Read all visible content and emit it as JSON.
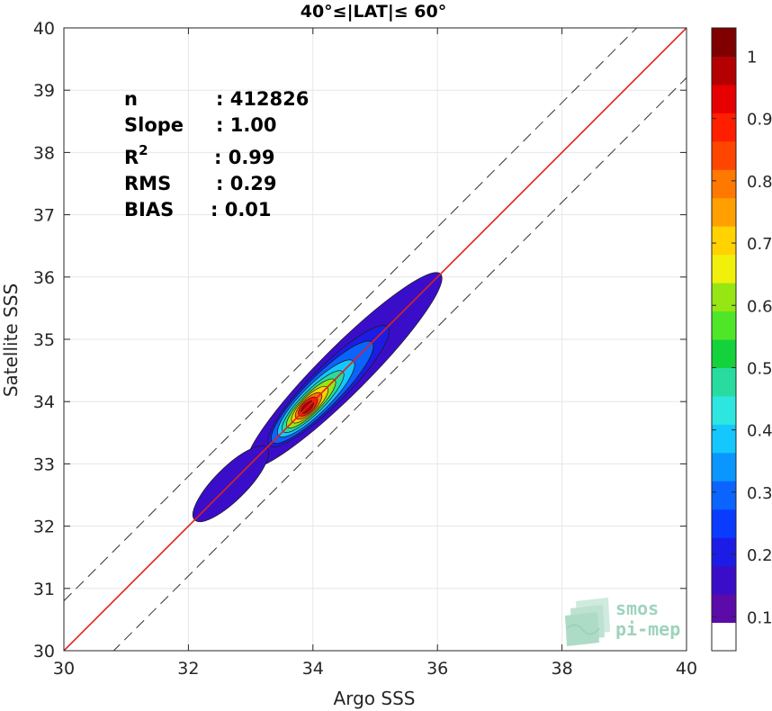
{
  "chart_data": {
    "type": "heatmap",
    "title": "40°≤|LAT|≤ 60°",
    "xlabel": "Argo SSS",
    "ylabel": "Satellite SSS",
    "xlim": [
      30,
      40
    ],
    "ylim": [
      30,
      40
    ],
    "xticks": [
      "30",
      "32",
      "34",
      "36",
      "38",
      "40"
    ],
    "yticks": [
      "30",
      "31",
      "32",
      "33",
      "34",
      "35",
      "36",
      "37",
      "38",
      "39",
      "40"
    ],
    "grid": true,
    "reference_lines": {
      "identity": {
        "slope": 1,
        "intercept": 0,
        "color": "#e02020"
      },
      "bounds": [
        {
          "slope": 1,
          "intercept": 0.8,
          "style": "dashed"
        },
        {
          "slope": 1,
          "intercept": -0.8,
          "style": "dashed"
        }
      ]
    },
    "density_peak": {
      "x": 33.9,
      "y": 33.9
    },
    "density_blobs": [
      {
        "cx": 34.5,
        "cy": 34.5,
        "half_length": 1.55,
        "half_width": 0.38,
        "level": 0.05
      },
      {
        "cx": 32.68,
        "cy": 32.68,
        "half_length": 0.58,
        "half_width": 0.26,
        "level": 0.05
      },
      {
        "cx": 34.25,
        "cy": 34.25,
        "half_length": 0.95,
        "half_width": 0.3,
        "level": 0.1
      },
      {
        "cx": 34.15,
        "cy": 34.15,
        "half_length": 0.8,
        "half_width": 0.26,
        "level": 0.2
      },
      {
        "cx": 34.05,
        "cy": 34.05,
        "half_length": 0.6,
        "half_width": 0.22,
        "level": 0.3
      },
      {
        "cx": 34.0,
        "cy": 34.0,
        "half_length": 0.48,
        "half_width": 0.18,
        "level": 0.4
      },
      {
        "cx": 33.97,
        "cy": 33.97,
        "half_length": 0.38,
        "half_width": 0.15,
        "level": 0.5
      },
      {
        "cx": 33.95,
        "cy": 33.95,
        "half_length": 0.28,
        "half_width": 0.13,
        "level": 0.6
      },
      {
        "cx": 33.93,
        "cy": 33.93,
        "half_length": 0.2,
        "half_width": 0.11,
        "level": 0.7
      },
      {
        "cx": 33.92,
        "cy": 33.92,
        "half_length": 0.14,
        "half_width": 0.09,
        "level": 0.8
      },
      {
        "cx": 33.91,
        "cy": 33.91,
        "half_length": 0.09,
        "half_width": 0.06,
        "level": 0.9
      }
    ],
    "colorbar": {
      "min": 0,
      "max": 1,
      "ticks": [
        "0.1",
        "0.2",
        "0.3",
        "0.4",
        "0.5",
        "0.6",
        "0.7",
        "0.8",
        "0.9",
        "1"
      ],
      "colors": [
        "#ffffff",
        "#5c0aa8",
        "#3a0ec8",
        "#1c1ce6",
        "#0a3cff",
        "#0a64ff",
        "#0a96ff",
        "#14c8ff",
        "#2ee6e0",
        "#28dca0",
        "#14d23c",
        "#50e628",
        "#96e614",
        "#f0f00a",
        "#ffd200",
        "#ffa000",
        "#ff7800",
        "#ff4600",
        "#ff1e00",
        "#e60000",
        "#b40000",
        "#800000"
      ]
    },
    "stats": [
      {
        "label": "n",
        "value": ": 412826"
      },
      {
        "label": "Slope",
        "value": ": 1.00"
      },
      {
        "label": "R",
        "sup": "2",
        "value": ": 0.99"
      },
      {
        "label": "RMS",
        "value": ": 0.29"
      },
      {
        "label": "BIAS",
        "value": ": 0.01"
      }
    ]
  },
  "logo": {
    "line1": "smos",
    "line2": "pi-mep",
    "color": "#9ed3bd"
  }
}
